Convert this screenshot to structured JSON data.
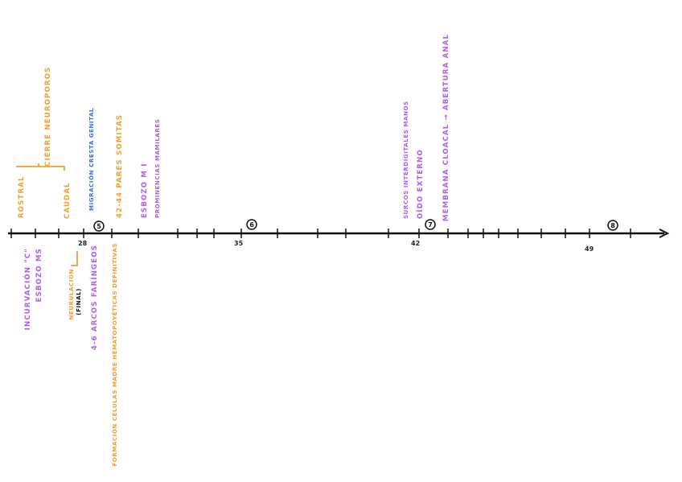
{
  "colors": {
    "purple": "#b15cf0",
    "orange": "#f0a030",
    "blue": "#3a6ff0",
    "black": "#111111"
  },
  "axis": {
    "tick_labels": [
      "28",
      "35",
      "42",
      "49"
    ]
  },
  "stages": [
    "5",
    "6",
    "7",
    "8"
  ],
  "labels": {
    "inclined": {
      "rostral": "ROSTRAL",
      "caudal": "CAUDAL"
    },
    "above": {
      "cierre_neuroporos": "CIERRE NEUROPOROS",
      "migracion": "MIGRACIÓN CRESTA GENITAL",
      "pares_somitas": "42-44 PARES SOMITAS",
      "esbozo_mi": "ESBOZO M I",
      "prominencias": "PROMINENCIAS MAMILARES",
      "surcos": "SURCOS INTERDIGITALES MANOS",
      "oido": "OÍDO EXTERNO",
      "membrana": "MEMBRANA CLOACAL → ABERTURA ANAL"
    },
    "below": {
      "incurvacion": "INCURVACIÓN \"C\"",
      "esbozo_ms": "ESBOZO MS",
      "neurulacion": "NEURULACIÓN",
      "final": "(FINAL)",
      "arcos": "4-6 ARCOS FARÍNGEOS",
      "formacion": "FORMACIÓN CÉLULAS MADRE HEMATOPOYÉTICAS DEFINITIVAS"
    }
  }
}
